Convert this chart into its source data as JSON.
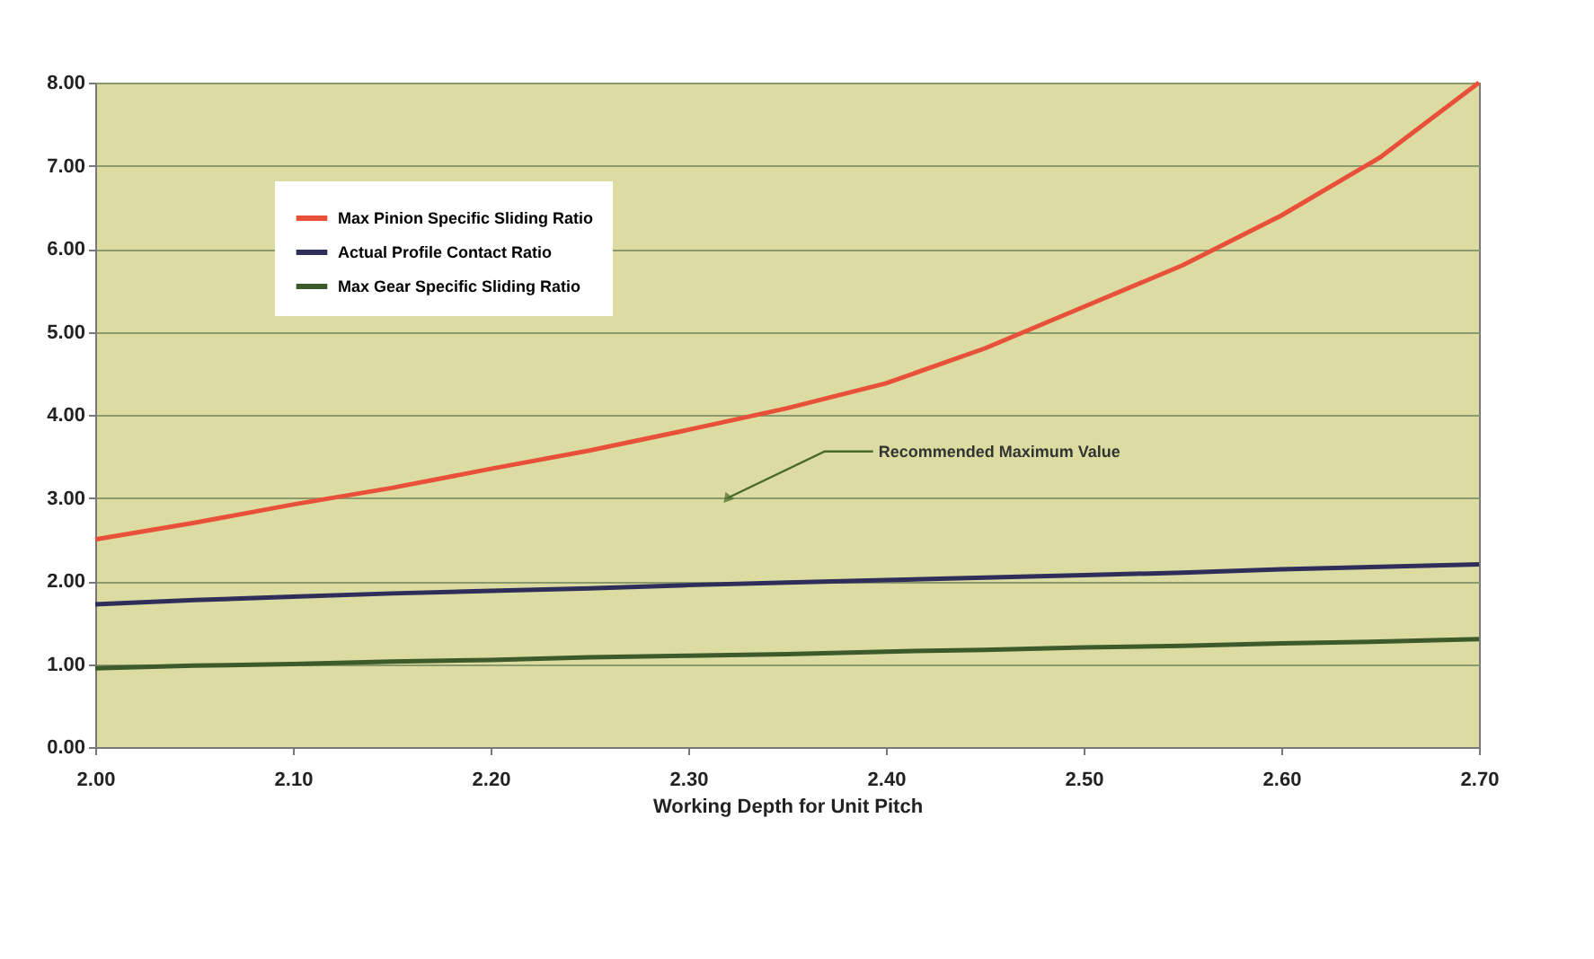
{
  "chart_data": {
    "type": "line",
    "xlabel": "Working Depth for Unit Pitch",
    "x": [
      2.0,
      2.05,
      2.1,
      2.15,
      2.2,
      2.25,
      2.3,
      2.35,
      2.4,
      2.45,
      2.5,
      2.55,
      2.6,
      2.65,
      2.7
    ],
    "series": [
      {
        "name": "Max Pinion Specific Sliding Ratio",
        "color": "#e8503a",
        "values": [
          2.5,
          2.7,
          2.92,
          3.12,
          3.35,
          3.57,
          3.82,
          4.08,
          4.38,
          4.8,
          5.3,
          5.8,
          6.4,
          7.1,
          8.0
        ]
      },
      {
        "name": "Actual Profile Contact Ratio",
        "color": "#2e2e5a",
        "values": [
          1.72,
          1.77,
          1.81,
          1.85,
          1.88,
          1.91,
          1.95,
          1.98,
          2.01,
          2.04,
          2.07,
          2.1,
          2.14,
          2.17,
          2.2
        ]
      },
      {
        "name": "Max Gear Specific Sliding Ratio",
        "color": "#3c5a2a",
        "values": [
          0.95,
          0.98,
          1.0,
          1.03,
          1.05,
          1.08,
          1.1,
          1.12,
          1.15,
          1.17,
          1.2,
          1.22,
          1.25,
          1.27,
          1.3
        ]
      }
    ],
    "annotations": [
      {
        "text": "Recommended Maximum Value",
        "x": 2.32,
        "y": 3.0
      }
    ],
    "xlim": [
      2.0,
      2.7
    ],
    "xticks": [
      {
        "value": 2.0,
        "label": "2.00"
      },
      {
        "value": 2.1,
        "label": "2.10"
      },
      {
        "value": 2.2,
        "label": "2.20"
      },
      {
        "value": 2.3,
        "label": "2.30"
      },
      {
        "value": 2.4,
        "label": "2.40"
      },
      {
        "value": 2.5,
        "label": "2.50"
      },
      {
        "value": 2.6,
        "label": "2.60"
      },
      {
        "value": 2.7,
        "label": "2.70"
      }
    ],
    "ylim": [
      0,
      8
    ],
    "yticks": [
      {
        "value": 0,
        "label": "0.00"
      },
      {
        "value": 1,
        "label": "1.00"
      },
      {
        "value": 2,
        "label": "2.00"
      },
      {
        "value": 3,
        "label": "3.00"
      },
      {
        "value": 4,
        "label": "4.00"
      },
      {
        "value": 5,
        "label": "5.00"
      },
      {
        "value": 6,
        "label": "6.00"
      },
      {
        "value": 7,
        "label": "7.00"
      },
      {
        "value": 8,
        "label": "8.00"
      }
    ],
    "grid": "y",
    "legend": "top left",
    "marker": "none",
    "line_style": "solid"
  }
}
